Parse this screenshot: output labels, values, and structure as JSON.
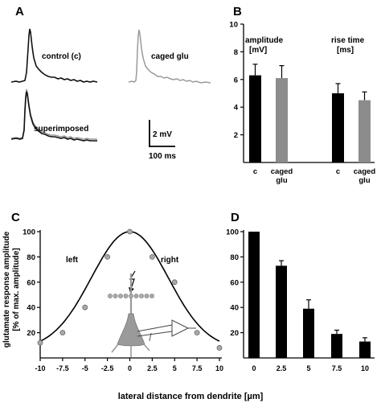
{
  "panels": {
    "a": {
      "letter": "A",
      "label_control": "control (c)",
      "label_caged": "caged glu",
      "label_superimposed": "superimposed",
      "scale_voltage": "2 mV",
      "scale_time": "100 ms",
      "trace_color_control": "#111111",
      "trace_color_caged": "#9a9a9a"
    },
    "b": {
      "letter": "B",
      "chart_data": {
        "type": "bar",
        "ylim": [
          0,
          10
        ],
        "yticks": [
          2,
          4,
          6,
          8,
          10
        ],
        "groups": [
          {
            "label_line1": "amplitude",
            "label_line2": "[mV]",
            "bars": [
              {
                "category": "c",
                "value": 6.3,
                "error": 0.8,
                "color": "#000000"
              },
              {
                "category_line1": "caged",
                "category_line2": "glu",
                "value": 6.1,
                "error": 0.9,
                "color": "#8c8c8c"
              }
            ]
          },
          {
            "label_line1": "rise time",
            "label_line2": "[ms]",
            "bars": [
              {
                "category": "c",
                "value": 5.0,
                "error": 0.7,
                "color": "#000000"
              },
              {
                "category_line1": "caged",
                "category_line2": "glu",
                "value": 4.5,
                "error": 0.6,
                "color": "#8c8c8c"
              }
            ]
          }
        ]
      }
    },
    "c": {
      "letter": "C",
      "ylabel_line1": "glutamate response amplitude",
      "ylabel_line2": "[% of max. amplitude]",
      "xlabel": "lateral distance from dendrite [µm]",
      "label_left": "left",
      "label_right": "right",
      "chart_data": {
        "type": "line",
        "xlim": [
          -10,
          10
        ],
        "ylim": [
          0,
          100
        ],
        "xticks": [
          "-10",
          "-7.5",
          "-5",
          "-2.5",
          "0",
          "2.5",
          "5",
          "7.5",
          "10"
        ],
        "yticks": [
          20,
          40,
          60,
          80,
          100
        ],
        "points": [
          {
            "x": -10,
            "y": 12
          },
          {
            "x": -7.5,
            "y": 20
          },
          {
            "x": -5,
            "y": 40
          },
          {
            "x": -2.5,
            "y": 80
          },
          {
            "x": 0,
            "y": 100
          },
          {
            "x": 2.5,
            "y": 80
          },
          {
            "x": 5,
            "y": 60
          },
          {
            "x": 7.5,
            "y": 20
          },
          {
            "x": 10,
            "y": 8
          }
        ]
      }
    },
    "d": {
      "letter": "D",
      "chart_data": {
        "type": "bar",
        "ylim": [
          0,
          100
        ],
        "yticks": [
          20,
          40,
          60,
          80,
          100
        ],
        "categories": [
          "0",
          "2.5",
          "5",
          "7.5",
          "10"
        ],
        "values": [
          100,
          73,
          39,
          19,
          13
        ],
        "errors": [
          0,
          4,
          7,
          3,
          3
        ],
        "color": "#000000"
      }
    }
  }
}
